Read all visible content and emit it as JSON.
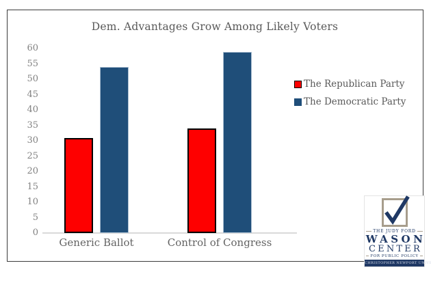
{
  "window": {
    "background": "#ffffff",
    "frame_border_color": "#3a3a3a"
  },
  "chart_data": {
    "type": "bar",
    "title": "Dem. Advantages Grow Among Likely Voters",
    "categories": [
      "Generic Ballot",
      "Control of Congress"
    ],
    "series": [
      {
        "name": "The Republican Party",
        "color": "#fe0000",
        "edge": "#000000",
        "values": [
          31,
          34
        ]
      },
      {
        "name": "The Democratic Party",
        "color": "#1f4e79",
        "edge": "#a8bdd0",
        "values": [
          54,
          59
        ]
      }
    ],
    "ylim": [
      0,
      60
    ],
    "ytick_step": 5,
    "yticks": [
      0,
      5,
      10,
      15,
      20,
      25,
      30,
      35,
      40,
      45,
      50,
      55,
      60
    ],
    "grid": false,
    "legend_position": "right",
    "axis_line_color": "#d9d9d9",
    "title_color": "#595959",
    "tick_label_color": "#828282",
    "category_label_color": "#636363"
  },
  "logo": {
    "line1": "THE JUDY FORD",
    "line2": "WASON",
    "line3": "CENTER",
    "line4": "FOR PUBLIC POLICY",
    "banner": "CHRISTOPHER NEWPORT UNIVERSITY",
    "navy": "#1f3864",
    "check_icon": "check-mark"
  }
}
